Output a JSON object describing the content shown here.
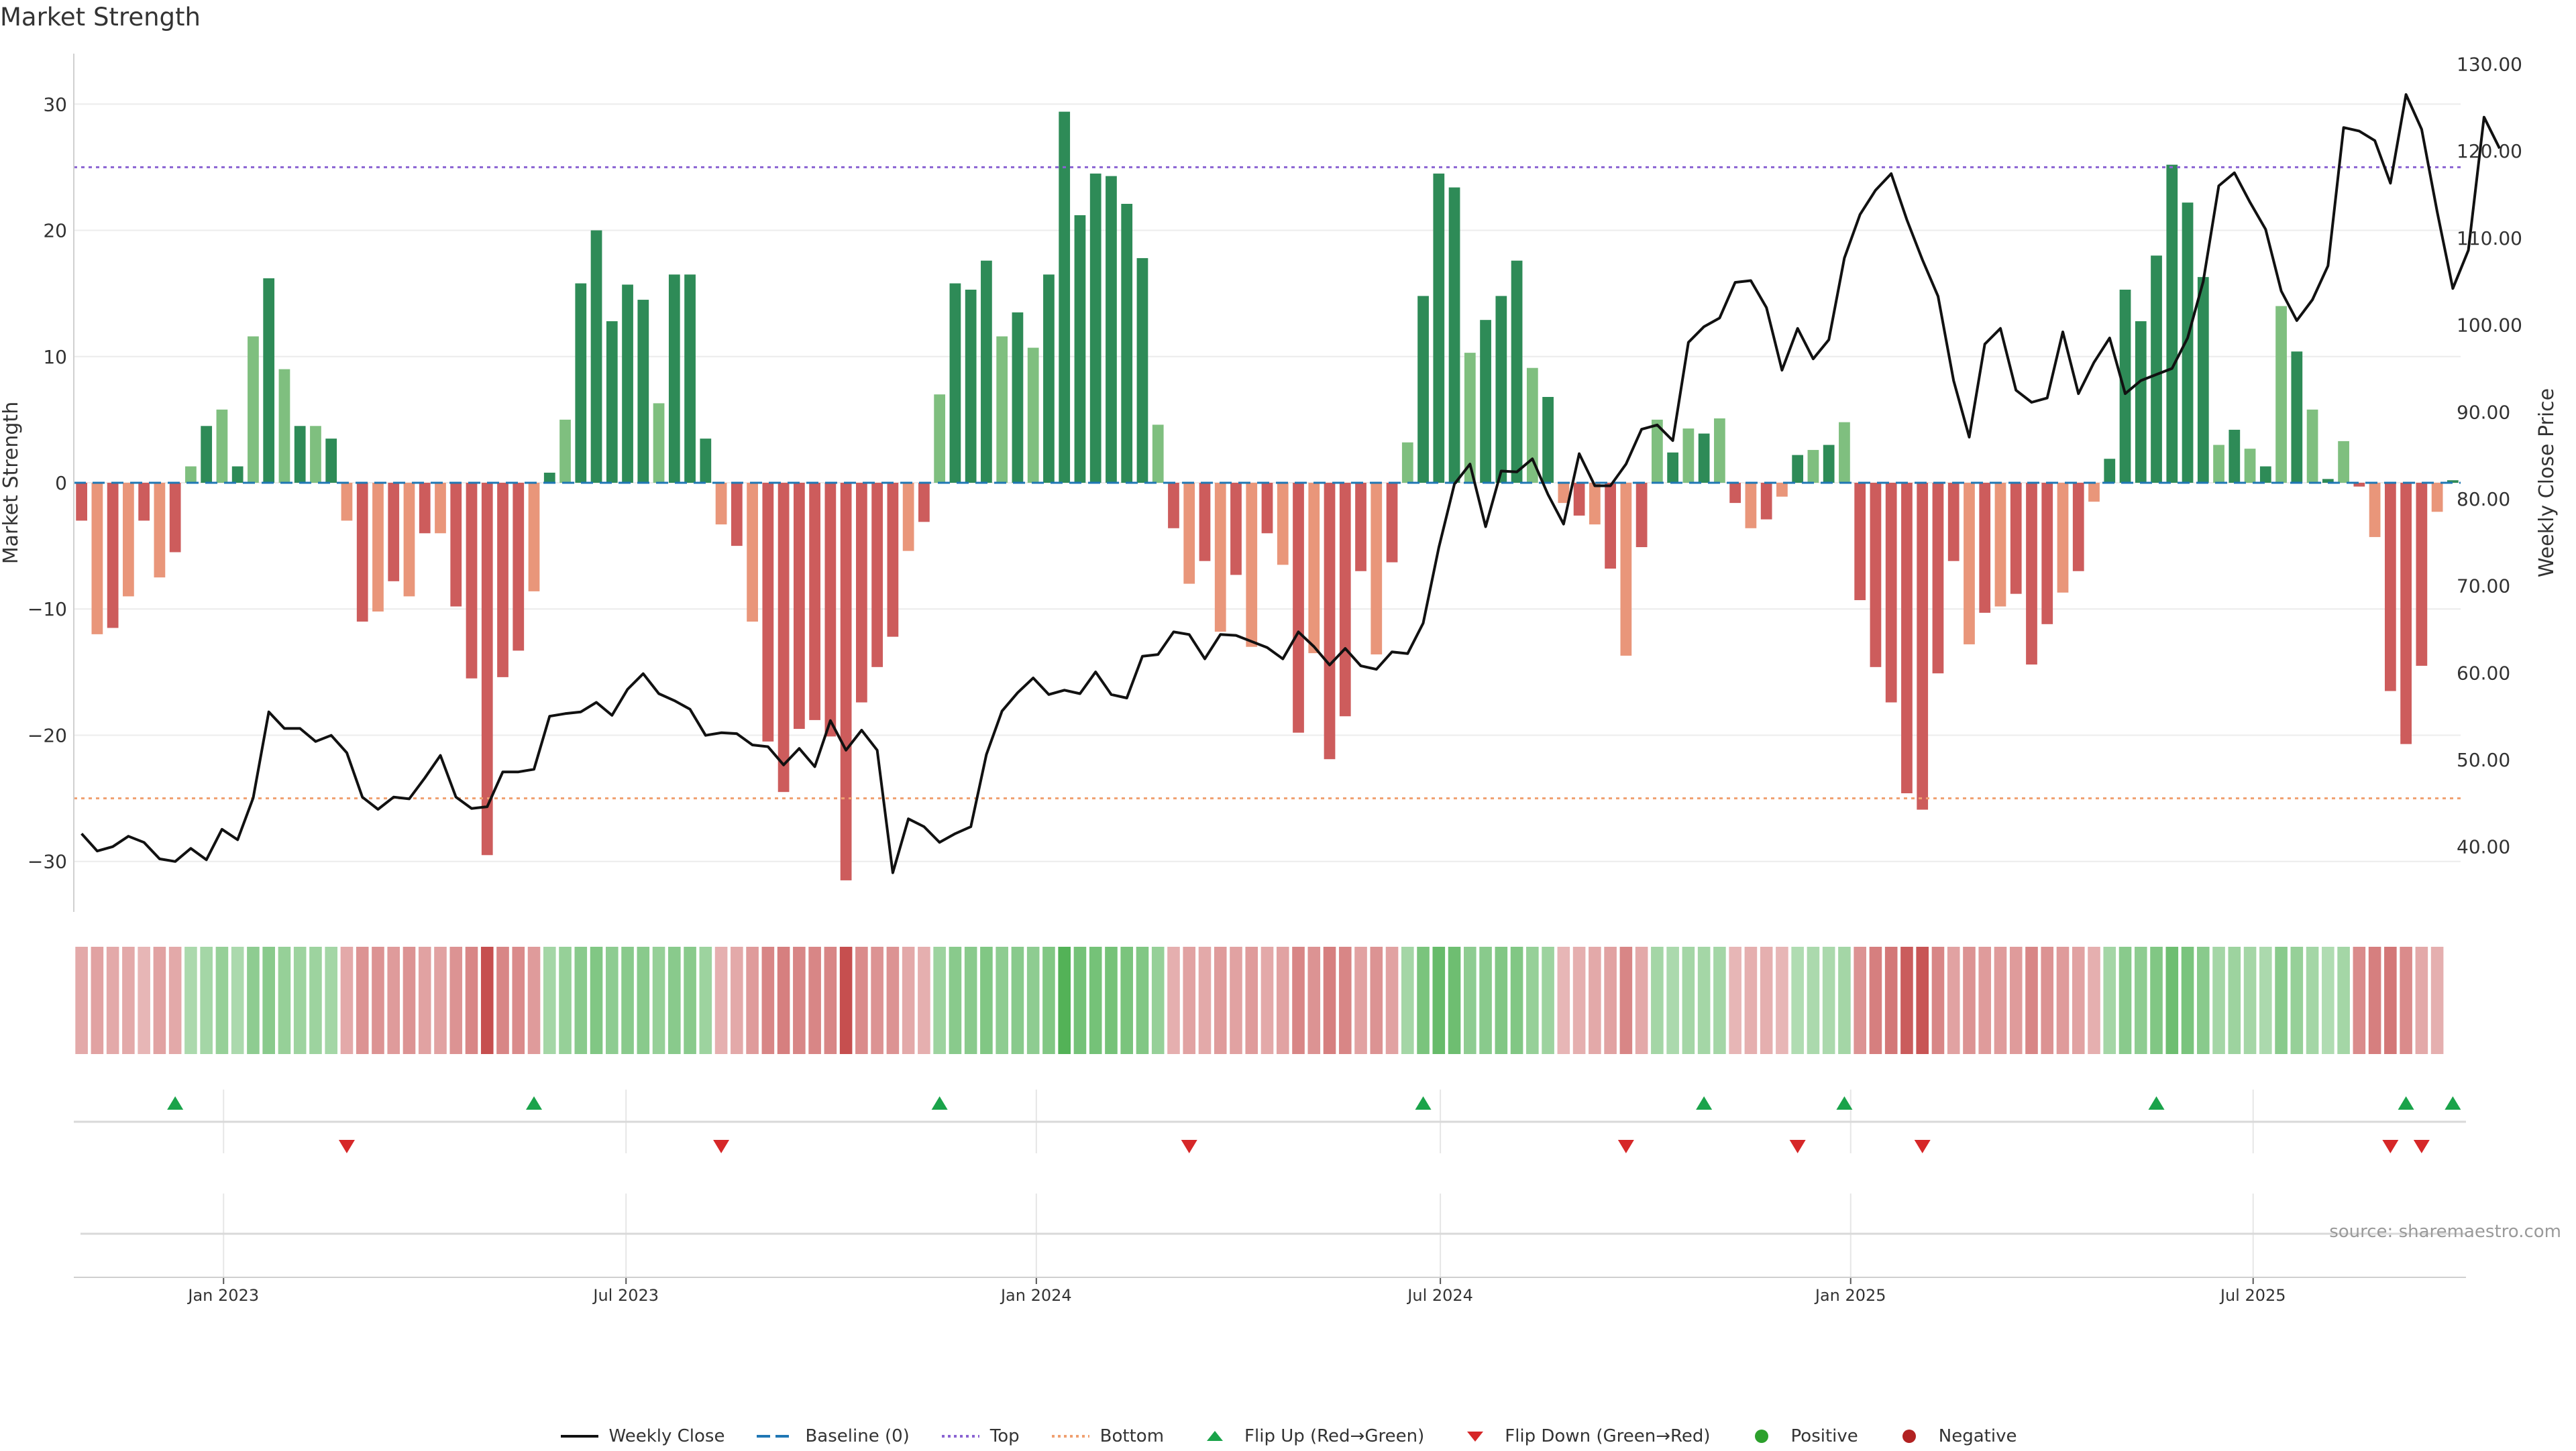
{
  "chart_data": {
    "type": "bar",
    "title": "Market Strength",
    "ylabel": "Market Strength",
    "y2label": "Weekly Close Price",
    "ylim": [
      -34,
      34
    ],
    "y2lim": [
      32.5,
      131.2
    ],
    "yticks": [
      "30",
      "20",
      "10",
      "0",
      "−10",
      "−20",
      "−30"
    ],
    "y2ticks": [
      "130.00",
      "120.00",
      "110.00",
      "100.00",
      "90.00",
      "80.00",
      "70.00",
      "60.00",
      "50.00",
      "40.00"
    ],
    "top_threshold": 25,
    "bottom_threshold": -25,
    "baseline": 0,
    "x_labels": [
      "Jan 2023",
      "Jul 2023",
      "Jan 2024",
      "Jul 2024",
      "Jan 2025",
      "Jul 2025"
    ],
    "x_label_weeks": [
      9.6,
      35.4,
      61.7,
      87.6,
      113.9,
      139.7
    ],
    "strength": [
      -3,
      -12,
      -11.5,
      -9,
      -3,
      -7.5,
      -5.5,
      1.3,
      4.5,
      5.8,
      1.3,
      11.6,
      16.2,
      9,
      4.5,
      4.5,
      3.5,
      -3,
      -11,
      -10.2,
      -7.8,
      -9,
      -4,
      -4,
      -9.8,
      -15.5,
      -29.5,
      -15.4,
      -13.3,
      -8.6,
      0.8,
      5,
      15.8,
      20,
      12.8,
      15.7,
      14.5,
      6.3,
      16.5,
      16.5,
      3.5,
      -3.3,
      -5,
      -11,
      -20.5,
      -24.5,
      -19.5,
      -18.8,
      -20.1,
      -31.5,
      -17.4,
      -14.6,
      -12.2,
      -5.4,
      -3.1,
      7,
      15.8,
      15.3,
      17.6,
      11.6,
      13.5,
      10.7,
      16.5,
      29.4,
      21.2,
      24.5,
      24.3,
      22.1,
      17.8,
      4.6,
      -3.6,
      -8,
      -6.2,
      -11.8,
      -7.3,
      -13,
      -4,
      -6.5,
      -19.8,
      -13.5,
      -21.9,
      -18.5,
      -7,
      -13.6,
      -6.3,
      3.2,
      14.8,
      24.5,
      23.4,
      10.3,
      12.9,
      14.8,
      17.6,
      9.1,
      6.8,
      -1.6,
      -2.6,
      -3.3,
      -6.8,
      -13.7,
      -5.1,
      5,
      2.4,
      4.3,
      3.9,
      5.1,
      -1.6,
      -3.6,
      -2.9,
      -1.1,
      2.2,
      2.6,
      3,
      4.8,
      -9.3,
      -14.6,
      -17.4,
      -24.6,
      -25.9,
      -15.1,
      -6.2,
      -12.8,
      -10.3,
      -9.8,
      -8.8,
      -14.4,
      -11.2,
      -8.7,
      -7,
      -1.5,
      1.9,
      15.3,
      12.8,
      18,
      25.2,
      22.2,
      16.3,
      3,
      4.2,
      2.7,
      1.3,
      14,
      10.4,
      5.8,
      0.3,
      3.3,
      -0.3,
      -4.3,
      -16.5,
      -20.7,
      -14.5,
      -2.3,
      0.2
    ],
    "close": [
      41.5,
      39.5,
      40,
      41.2,
      40.5,
      38.6,
      38.3,
      39.8,
      38.5,
      42,
      40.8,
      45.6,
      55.5,
      53.6,
      53.6,
      52.1,
      52.8,
      50.8,
      45.7,
      44.3,
      45.7,
      45.5,
      47.9,
      50.5,
      45.7,
      44.4,
      44.6,
      48.6,
      48.6,
      48.9,
      55,
      55.3,
      55.5,
      56.6,
      55.1,
      58.1,
      59.9,
      57.6,
      56.8,
      55.8,
      52.8,
      53.1,
      53,
      51.7,
      51.5,
      49.4,
      51.3,
      49.2,
      54.5,
      51.1,
      53.4,
      51.1,
      37,
      43.2,
      42.3,
      40.5,
      41.5,
      42.3,
      50.6,
      55.6,
      57.7,
      59.4,
      57.5,
      58,
      57.6,
      60.1,
      57.5,
      57.1,
      61.9,
      62.1,
      64.7,
      64.4,
      61.6,
      64.4,
      64.3,
      63.6,
      62.9,
      61.6,
      64.7,
      63,
      60.9,
      62.8,
      60.8,
      60.4,
      62.4,
      62.2,
      65.7,
      74.4,
      81.7,
      84,
      76.8,
      83.2,
      83.1,
      84.6,
      80.5,
      77.1,
      85.2,
      81.5,
      81.5,
      84,
      88,
      88.5,
      86.7,
      98,
      99.8,
      100.8,
      104.9,
      105.1,
      102,
      94.8,
      99.6,
      96.1,
      98.3,
      107.7,
      112.7,
      115.5,
      117.4,
      112.1,
      107.5,
      103.3,
      93.6,
      87.1,
      97.8,
      99.6,
      92.5,
      91.1,
      91.6,
      99.2,
      92.1,
      95.7,
      98.5,
      92.1,
      93.6,
      94.3,
      95,
      98.5,
      105,
      116,
      117.5,
      114.1,
      111,
      103.9,
      100.5,
      102.9,
      106.8,
      122.7,
      122.3,
      121.2,
      116.3,
      126.5,
      122.5,
      113,
      104.2,
      108.6,
      123.9,
      120.3
    ],
    "heat_intensity": [
      0.3,
      0.35,
      0.3,
      0.3,
      0.2,
      0.35,
      0.3,
      0.3,
      0.35,
      0.45,
      0.3,
      0.5,
      0.55,
      0.45,
      0.4,
      0.4,
      0.35,
      0.3,
      0.45,
      0.45,
      0.4,
      0.45,
      0.35,
      0.35,
      0.45,
      0.55,
      0.95,
      0.55,
      0.5,
      0.4,
      0.35,
      0.45,
      0.55,
      0.6,
      0.5,
      0.55,
      0.55,
      0.45,
      0.55,
      0.55,
      0.4,
      0.25,
      0.3,
      0.4,
      0.55,
      0.6,
      0.55,
      0.55,
      0.55,
      0.95,
      0.5,
      0.45,
      0.45,
      0.3,
      0.25,
      0.4,
      0.55,
      0.55,
      0.6,
      0.5,
      0.55,
      0.5,
      0.6,
      0.95,
      0.7,
      0.7,
      0.7,
      0.65,
      0.6,
      0.45,
      0.25,
      0.35,
      0.3,
      0.4,
      0.35,
      0.4,
      0.3,
      0.35,
      0.55,
      0.45,
      0.6,
      0.55,
      0.35,
      0.45,
      0.35,
      0.35,
      0.65,
      0.8,
      0.75,
      0.5,
      0.55,
      0.6,
      0.6,
      0.45,
      0.4,
      0.2,
      0.25,
      0.3,
      0.35,
      0.55,
      0.3,
      0.35,
      0.3,
      0.35,
      0.35,
      0.35,
      0.2,
      0.25,
      0.25,
      0.2,
      0.25,
      0.3,
      0.3,
      0.35,
      0.45,
      0.6,
      0.65,
      0.85,
      0.9,
      0.55,
      0.35,
      0.45,
      0.4,
      0.4,
      0.4,
      0.55,
      0.45,
      0.4,
      0.35,
      0.25,
      0.35,
      0.55,
      0.5,
      0.6,
      0.75,
      0.65,
      0.55,
      0.35,
      0.4,
      0.35,
      0.3,
      0.55,
      0.45,
      0.35,
      0.25,
      0.35,
      0.5,
      0.6,
      0.65,
      0.5,
      0.3,
      0.25
    ],
    "flip_up_weeks": [
      6,
      29,
      55,
      86,
      104,
      113,
      133,
      149,
      155
    ],
    "flip_down_weeks": [
      17,
      41,
      71,
      99,
      110,
      118,
      148,
      150
    ],
    "colors": {
      "strong_positive": "#2e8b57",
      "positive": "#7fbf7f",
      "strong_negative": "#cd5c5c",
      "negative": "#e9967a",
      "baseline": "#1f77b4",
      "top": "#8a63d2",
      "bottom": "#f0a070",
      "flip_up": "#1aa34a",
      "flip_down": "#d62728",
      "positive_dot": "#2ca02c",
      "negative_dot": "#b22222"
    },
    "legend": [
      {
        "label": "Weekly Close",
        "symbol": "line"
      },
      {
        "label": "Baseline (0)",
        "symbol": "dash"
      },
      {
        "label": "Top",
        "symbol": "dot-line"
      },
      {
        "label": "Bottom",
        "symbol": "dot-line-orange"
      },
      {
        "label": "Flip Up (Red→Green)",
        "symbol": "triangle-up"
      },
      {
        "label": "Flip Down (Green→Red)",
        "symbol": "triangle-down"
      },
      {
        "label": "Positive",
        "symbol": "dot-green"
      },
      {
        "label": "Negative",
        "symbol": "dot-red"
      }
    ]
  },
  "source_note": "source: sharemaestro.com"
}
